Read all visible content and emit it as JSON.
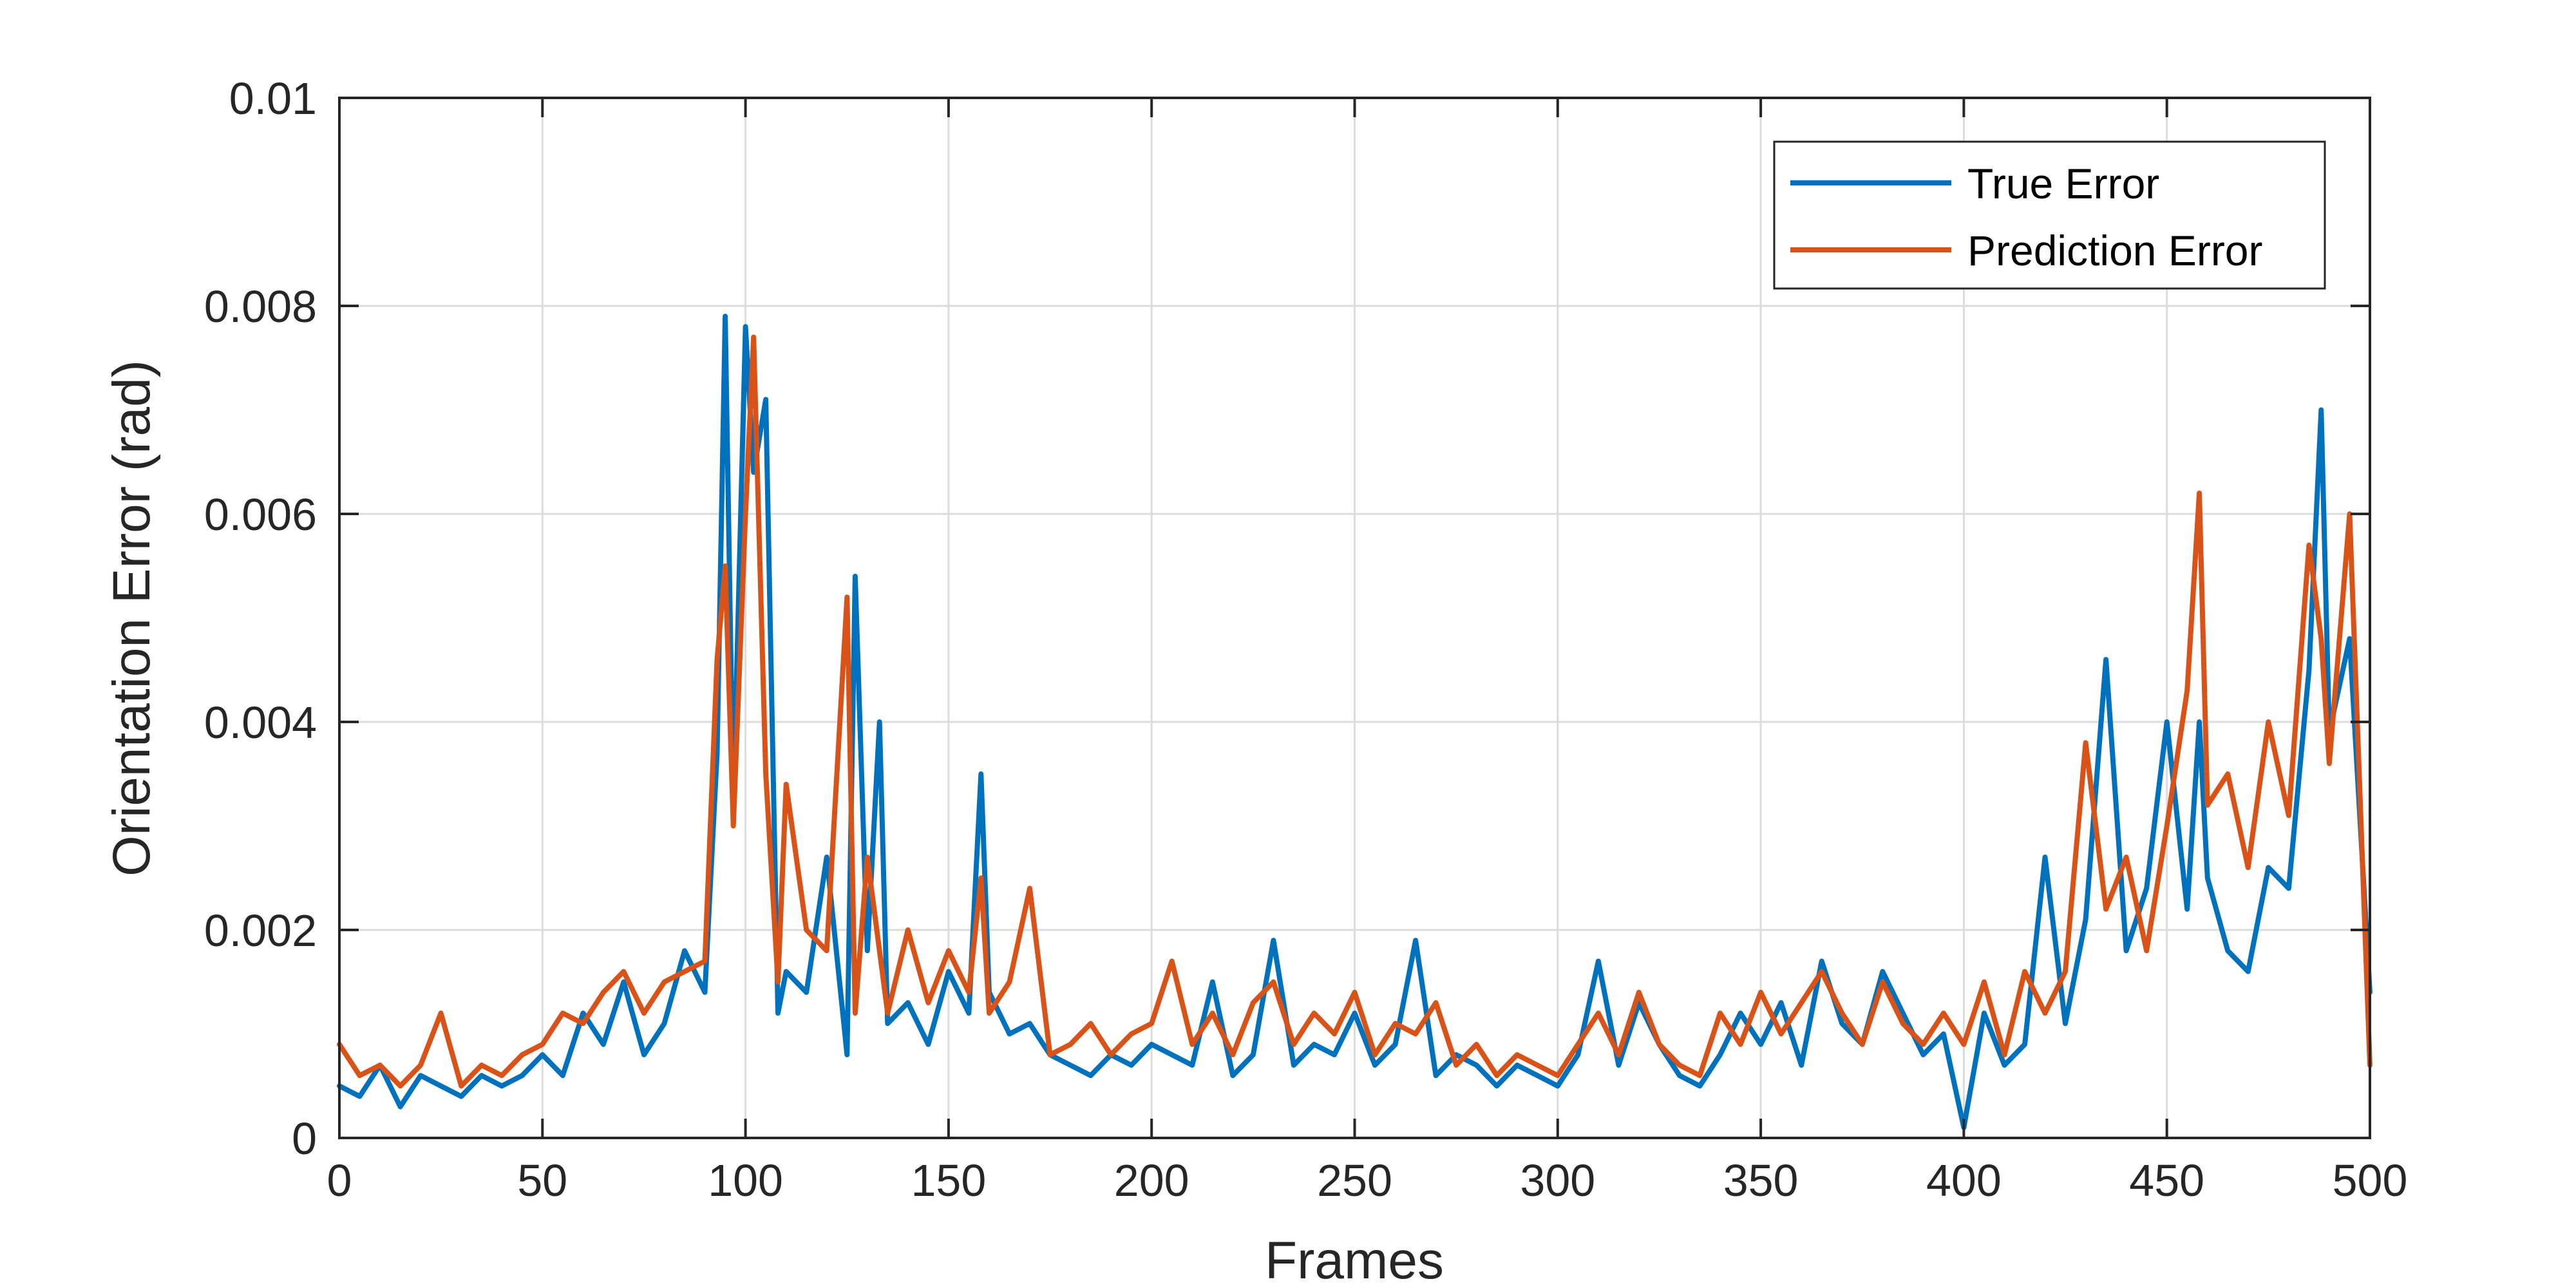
{
  "chart_data": {
    "type": "line",
    "title": "",
    "xlabel": "Frames",
    "ylabel": "Orientation Error (rad)",
    "xlim": [
      0,
      500
    ],
    "ylim": [
      0,
      0.01
    ],
    "x_ticks": [
      "0",
      "50",
      "100",
      "150",
      "200",
      "250",
      "300",
      "350",
      "400",
      "450",
      "500"
    ],
    "y_ticks": [
      "0",
      "0.002",
      "0.004",
      "0.006",
      "0.008",
      "0.01"
    ],
    "grid": true,
    "legend_position": "top-right",
    "x": [
      0,
      5,
      10,
      15,
      20,
      25,
      30,
      35,
      40,
      45,
      50,
      55,
      60,
      65,
      70,
      75,
      80,
      85,
      90,
      93,
      95,
      97,
      100,
      102,
      105,
      108,
      110,
      115,
      120,
      125,
      127,
      130,
      133,
      135,
      140,
      145,
      150,
      155,
      158,
      160,
      165,
      170,
      175,
      180,
      185,
      190,
      195,
      200,
      205,
      210,
      215,
      220,
      225,
      230,
      235,
      240,
      245,
      250,
      255,
      260,
      265,
      270,
      275,
      280,
      285,
      290,
      295,
      300,
      305,
      310,
      315,
      320,
      325,
      330,
      335,
      340,
      345,
      350,
      355,
      360,
      365,
      370,
      375,
      380,
      385,
      390,
      395,
      400,
      405,
      410,
      415,
      420,
      425,
      430,
      435,
      440,
      445,
      450,
      455,
      458,
      460,
      465,
      470,
      475,
      480,
      485,
      488,
      490,
      495,
      500
    ],
    "series": [
      {
        "name": "True Error",
        "color": "#0072BD",
        "values": [
          0.0005,
          0.0004,
          0.0007,
          0.0003,
          0.0006,
          0.0005,
          0.0004,
          0.0006,
          0.0005,
          0.0006,
          0.0008,
          0.0006,
          0.0012,
          0.0009,
          0.0015,
          0.0008,
          0.0011,
          0.0018,
          0.0014,
          0.0037,
          0.0079,
          0.0032,
          0.0078,
          0.0064,
          0.0071,
          0.0012,
          0.0016,
          0.0014,
          0.0027,
          0.0008,
          0.0054,
          0.0018,
          0.004,
          0.0011,
          0.0013,
          0.0009,
          0.0016,
          0.0012,
          0.0035,
          0.0014,
          0.001,
          0.0011,
          0.0008,
          0.0007,
          0.0006,
          0.0008,
          0.0007,
          0.0009,
          0.0008,
          0.0007,
          0.0015,
          0.0006,
          0.0008,
          0.0019,
          0.0007,
          0.0009,
          0.0008,
          0.0012,
          0.0007,
          0.0009,
          0.0019,
          0.0006,
          0.0008,
          0.0007,
          0.0005,
          0.0007,
          0.0006,
          0.0005,
          0.0008,
          0.0017,
          0.0007,
          0.0013,
          0.0009,
          0.0006,
          0.0005,
          0.0008,
          0.0012,
          0.0009,
          0.0013,
          0.0007,
          0.0017,
          0.0011,
          0.0009,
          0.0016,
          0.0012,
          0.0008,
          0.001,
          0.0001,
          0.0012,
          0.0007,
          0.0009,
          0.0027,
          0.0011,
          0.0021,
          0.0046,
          0.0018,
          0.0024,
          0.004,
          0.0022,
          0.004,
          0.0025,
          0.0018,
          0.0016,
          0.0026,
          0.0024,
          0.0045,
          0.007,
          0.0039,
          0.0048,
          0.0014
        ]
      },
      {
        "name": "Prediction Error",
        "color": "#D95319",
        "values": [
          0.0009,
          0.0006,
          0.0007,
          0.0005,
          0.0007,
          0.0012,
          0.0005,
          0.0007,
          0.0006,
          0.0008,
          0.0009,
          0.0012,
          0.0011,
          0.0014,
          0.0016,
          0.0012,
          0.0015,
          0.0016,
          0.0017,
          0.0046,
          0.0055,
          0.003,
          0.006,
          0.0077,
          0.0035,
          0.0015,
          0.0034,
          0.002,
          0.0018,
          0.0052,
          0.0012,
          0.0027,
          0.0018,
          0.0012,
          0.002,
          0.0013,
          0.0018,
          0.0014,
          0.0025,
          0.0012,
          0.0015,
          0.0024,
          0.0008,
          0.0009,
          0.0011,
          0.0008,
          0.001,
          0.0011,
          0.0017,
          0.0009,
          0.0012,
          0.0008,
          0.0013,
          0.0015,
          0.0009,
          0.0012,
          0.001,
          0.0014,
          0.0008,
          0.0011,
          0.001,
          0.0013,
          0.0007,
          0.0009,
          0.0006,
          0.0008,
          0.0007,
          0.0006,
          0.0009,
          0.0012,
          0.0008,
          0.0014,
          0.0009,
          0.0007,
          0.0006,
          0.0012,
          0.0009,
          0.0014,
          0.001,
          0.0013,
          0.0016,
          0.0012,
          0.0009,
          0.0015,
          0.0011,
          0.0009,
          0.0012,
          0.0009,
          0.0015,
          0.0008,
          0.0016,
          0.0012,
          0.0016,
          0.0038,
          0.0022,
          0.0027,
          0.0018,
          0.003,
          0.0043,
          0.0062,
          0.0032,
          0.0035,
          0.0026,
          0.004,
          0.0031,
          0.0057,
          0.0048,
          0.0036,
          0.006,
          0.0007
        ]
      }
    ]
  }
}
